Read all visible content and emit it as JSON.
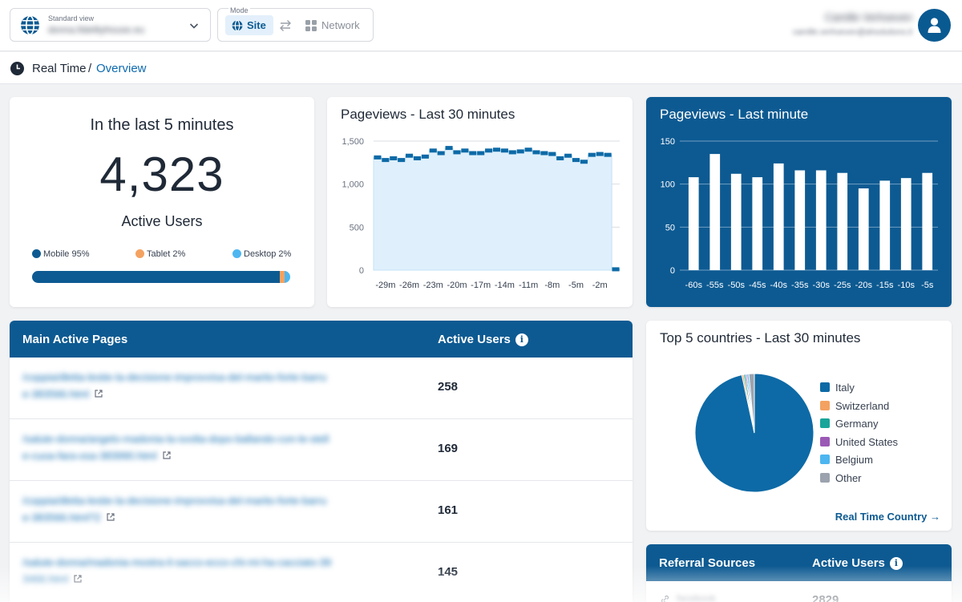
{
  "header": {
    "view_label": "Standard view",
    "view_value": "donna.fidelityhouse.eu",
    "mode_label": "Mode",
    "mode_site": "Site",
    "mode_network": "Network",
    "user_name": "Camille Verhoeven",
    "user_email": "camille.verhoeven@ahsolutions.it",
    "accent": "#0d5a92"
  },
  "breadcrumb": {
    "root": "Real Time",
    "separator": "/",
    "page": "Overview"
  },
  "active": {
    "title": "In the last 5 minutes",
    "count": "4,323",
    "label": "Active Users",
    "devices": [
      {
        "label": "Mobile 95%",
        "share": 95,
        "color": "#0d5a92"
      },
      {
        "label": "Tablet 2%",
        "share": 2,
        "color": "#f4a261"
      },
      {
        "label": "Desktop 2%",
        "share": 2,
        "color": "#4db6f0"
      }
    ]
  },
  "pageviews30": {
    "title": "Pageviews - Last 30 minutes"
  },
  "pageviews1": {
    "title": "Pageviews - Last minute"
  },
  "pages": {
    "header_page": "Main Active Pages",
    "header_users": "Active Users",
    "rows": [
      {
        "path_l1": "/coppia/dletta-lestie-la-decisione-improvvisa-del-marito-forte-barru",
        "path_l2": "e-383566.html",
        "users": "258"
      },
      {
        "path_l1": "/salute-donna/angelo-madonia-la-svolta-dopo-ballando-con-le-stell",
        "path_l2": "e-cuoa-fara-osa-383990.html",
        "users": "169"
      },
      {
        "path_l1": "/coppia/dletta-lestie-la-decisione-improvvisa-del-marito-forte-barru",
        "path_l2": "e-383566.html?2",
        "users": "161"
      },
      {
        "path_l1": "/salute-donna/madonia-mostra-il-sacco-ecco-chi-mi-ha-cacciato-39",
        "path_l2": "3466.html",
        "users": "145"
      }
    ]
  },
  "countries": {
    "title": "Top 5 countries - Last 30 minutes",
    "link": "Real Time Country",
    "items": [
      {
        "name": "Italy",
        "color": "#0d6aa6"
      },
      {
        "name": "Switzerland",
        "color": "#f4a261"
      },
      {
        "name": "Germany",
        "color": "#1aa59a"
      },
      {
        "name": "United States",
        "color": "#9b59b6"
      },
      {
        "name": "Belgium",
        "color": "#4db6f0"
      },
      {
        "name": "Other",
        "color": "#9ca3af"
      }
    ]
  },
  "referrals": {
    "header_source": "Referral Sources",
    "header_users": "Active Users",
    "rows": [
      {
        "source": "facebook",
        "users": "2829"
      }
    ]
  },
  "chart_data": [
    {
      "type": "area",
      "title": "Pageviews - Last 30 minutes",
      "categories": [
        "-30m",
        "-29m",
        "-28m",
        "-27m",
        "-26m",
        "-25m",
        "-24m",
        "-23m",
        "-22m",
        "-21m",
        "-20m",
        "-19m",
        "-18m",
        "-17m",
        "-16m",
        "-15m",
        "-14m",
        "-13m",
        "-12m",
        "-11m",
        "-10m",
        "-9m",
        "-8m",
        "-7m",
        "-6m",
        "-5m",
        "-4m",
        "-3m",
        "-2m",
        "-1m",
        "0m"
      ],
      "values": [
        1310,
        1280,
        1300,
        1280,
        1330,
        1300,
        1320,
        1390,
        1360,
        1420,
        1370,
        1390,
        1360,
        1360,
        1390,
        1400,
        1390,
        1370,
        1380,
        1400,
        1370,
        1360,
        1350,
        1300,
        1330,
        1280,
        1260,
        1340,
        1350,
        1340,
        10
      ],
      "ylim": [
        0,
        1500
      ],
      "yticks": [
        "0",
        "500",
        "1,000",
        "1,500"
      ],
      "xticks": [
        "-29m",
        "-26m",
        "-23m",
        "-20m",
        "-17m",
        "-14m",
        "-11m",
        "-8m",
        "-5m",
        "-2m"
      ],
      "grid": true
    },
    {
      "type": "bar",
      "title": "Pageviews - Last minute",
      "categories": [
        "-60s",
        "-55s",
        "-50s",
        "-45s",
        "-40s",
        "-35s",
        "-30s",
        "-25s",
        "-20s",
        "-15s",
        "-10s",
        "-5s"
      ],
      "values": [
        108,
        135,
        112,
        108,
        124,
        116,
        116,
        113,
        95,
        104,
        107,
        113
      ],
      "ylim": [
        0,
        150
      ],
      "yticks": [
        "0",
        "50",
        "100",
        "150"
      ],
      "grid": true
    },
    {
      "type": "pie",
      "title": "Top 5 countries - Last 30 minutes",
      "categories": [
        "Italy",
        "Switzerland",
        "Germany",
        "United States",
        "Belgium",
        "Other"
      ],
      "values": [
        96.6,
        0.5,
        0.5,
        0.4,
        0.5,
        1.5
      ],
      "legend": "right"
    }
  ]
}
